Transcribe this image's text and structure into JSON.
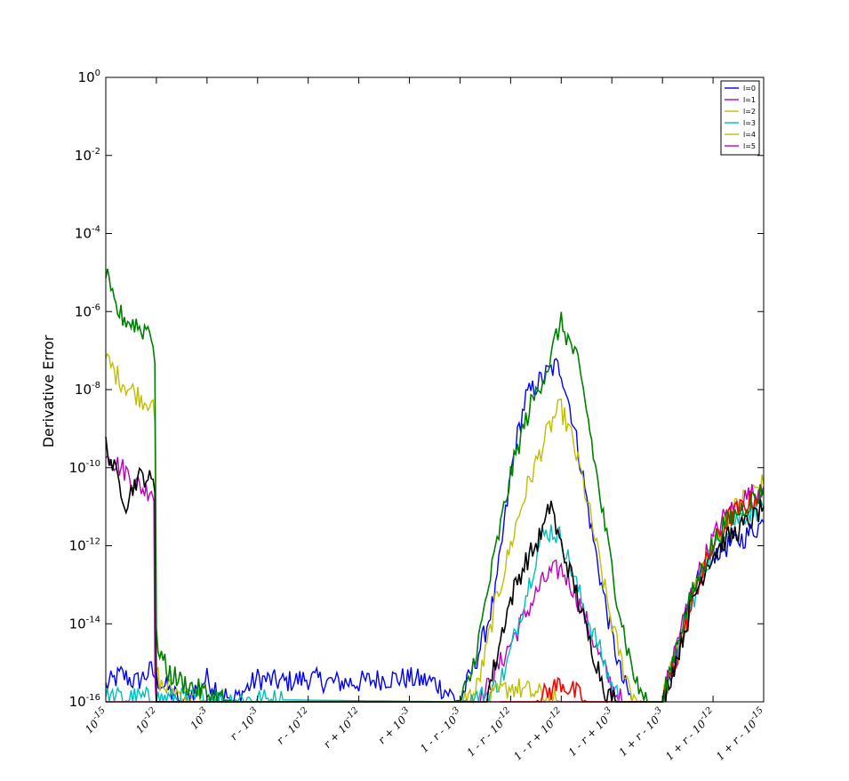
{
  "chart_data": {
    "type": "line",
    "title": "",
    "xlabel": "",
    "ylabel": "Derivative Error",
    "y_scale": "log",
    "ylim": [
      1e-16,
      1
    ],
    "y_ticks": [
      {
        "base": "10",
        "exp": "0"
      },
      {
        "base": "10",
        "exp": "-2"
      },
      {
        "base": "10",
        "exp": "-4"
      },
      {
        "base": "10",
        "exp": "-6"
      },
      {
        "base": "10",
        "exp": "-8"
      },
      {
        "base": "10",
        "exp": "-10"
      },
      {
        "base": "10",
        "exp": "-12"
      },
      {
        "base": "10",
        "exp": "-14"
      },
      {
        "base": "10",
        "exp": "-16"
      }
    ],
    "x_ticks": [
      "10^{-15}",
      "10^{-12}",
      "10^{-3}",
      "r - 10^{-3}",
      "r - 10^{-12}",
      "r + 10^{-12}",
      "r + 10^{-3}",
      "1 - r - 10^{-3}",
      "1 - r - 10^{-12}",
      "1 - r + 10^{-12}",
      "1 - r + 10^{-3}",
      "1 + r - 10^{-3}",
      "1 + r - 10^{-12}",
      "1 + r - 10^{-15}"
    ],
    "grid": false,
    "legend_position": "top-right",
    "legend": [
      "l=0",
      "l=1",
      "l=2",
      "l=3",
      "l=4",
      "l=5"
    ],
    "colors": {
      "blue": "#0000ff",
      "magenta": "#bf00bf",
      "olive": "#bfbf00",
      "cyan": "#00bfbf",
      "red": "#ff0000",
      "black": "#000000",
      "green": "#007f00"
    },
    "series": [
      {
        "name": "l=0",
        "color": "#0000ff",
        "log10_points": [
          [
            0,
            -15.6
          ],
          [
            0.3,
            -15.3
          ],
          [
            0.6,
            -15.5
          ],
          [
            0.9,
            -15.2
          ],
          [
            1,
            -15.4
          ],
          [
            1.5,
            -16
          ],
          [
            2,
            -15.4
          ],
          [
            2.5,
            -16
          ],
          [
            3,
            -15.4
          ],
          [
            3.5,
            -15.5
          ],
          [
            4,
            -15.4
          ],
          [
            4.5,
            -15.5
          ],
          [
            5,
            -15.5
          ],
          [
            5.5,
            -15.4
          ],
          [
            6,
            -15.4
          ],
          [
            6.5,
            -15.5
          ],
          [
            6.8,
            -15.8
          ],
          [
            7,
            -16
          ],
          [
            7.3,
            -15
          ],
          [
            7.5,
            -14.2
          ],
          [
            7.7,
            -13.2
          ],
          [
            7.8,
            -12.2
          ],
          [
            7.9,
            -11.2
          ],
          [
            8,
            -10.2
          ],
          [
            8.1,
            -9.4
          ],
          [
            8.2,
            -8.8
          ],
          [
            8.3,
            -8.2
          ],
          [
            8.5,
            -7.9
          ],
          [
            8.7,
            -7.6
          ],
          [
            8.9,
            -7.4
          ],
          [
            9,
            -7.5
          ],
          [
            9.2,
            -8.6
          ],
          [
            9.4,
            -10
          ],
          [
            9.6,
            -11.6
          ],
          [
            9.8,
            -13
          ],
          [
            10,
            -14.3
          ],
          [
            10.2,
            -15.4
          ],
          [
            10.4,
            -16
          ],
          [
            11,
            -16
          ],
          [
            11.2,
            -15.2
          ],
          [
            11.4,
            -14.2
          ],
          [
            11.6,
            -13.3
          ],
          [
            11.8,
            -12.6
          ],
          [
            12,
            -12.2
          ],
          [
            12.3,
            -12
          ],
          [
            12.6,
            -11.8
          ],
          [
            13,
            -11.4
          ]
        ]
      },
      {
        "name": "l=1",
        "color": "#bf00bf",
        "log10_points": [
          [
            0,
            -9.5
          ],
          [
            0.2,
            -9.9
          ],
          [
            0.4,
            -10.1
          ],
          [
            0.6,
            -10.4
          ],
          [
            0.8,
            -10.6
          ],
          [
            0.9,
            -10.5
          ],
          [
            0.95,
            -10.8
          ],
          [
            0.97,
            -15
          ],
          [
            1,
            -16
          ],
          [
            7,
            -16
          ],
          [
            7.4,
            -16
          ],
          [
            7.6,
            -15.5
          ],
          [
            7.8,
            -15
          ],
          [
            8,
            -14.5
          ],
          [
            8.2,
            -14
          ],
          [
            8.4,
            -13.5
          ],
          [
            8.6,
            -13
          ],
          [
            8.8,
            -12.7
          ],
          [
            9,
            -12.6
          ],
          [
            9.2,
            -13
          ],
          [
            9.4,
            -13.6
          ],
          [
            9.6,
            -14.3
          ],
          [
            9.8,
            -15
          ],
          [
            10,
            -15.6
          ],
          [
            10.2,
            -16
          ]
        ]
      },
      {
        "name": "l=2",
        "color": "#bfbf00",
        "log10_points": [
          [
            0,
            -7.2
          ],
          [
            0.2,
            -7.6
          ],
          [
            0.4,
            -7.9
          ],
          [
            0.6,
            -8.1
          ],
          [
            0.8,
            -8.3
          ],
          [
            0.9,
            -8.2
          ],
          [
            0.97,
            -8.9
          ],
          [
            1,
            -15.2
          ],
          [
            1.1,
            -15.6
          ],
          [
            1.5,
            -15.8
          ],
          [
            2,
            -16
          ],
          [
            7,
            -16
          ],
          [
            7.3,
            -15.8
          ],
          [
            7.5,
            -14.8
          ],
          [
            7.7,
            -13.5
          ],
          [
            7.9,
            -12.5
          ],
          [
            8.1,
            -11.5
          ],
          [
            8.3,
            -10.6
          ],
          [
            8.5,
            -9.9
          ],
          [
            8.7,
            -9.2
          ],
          [
            8.9,
            -8.6
          ],
          [
            9,
            -8.5
          ],
          [
            9.2,
            -9.2
          ],
          [
            9.4,
            -10.2
          ],
          [
            9.6,
            -11.4
          ],
          [
            9.8,
            -12.7
          ],
          [
            10,
            -14
          ],
          [
            10.2,
            -15
          ],
          [
            10.4,
            -15.8
          ],
          [
            10.6,
            -16
          ]
        ]
      },
      {
        "name": "l=3",
        "color": "#00bfbf",
        "log10_points": [
          [
            0,
            -15.9
          ],
          [
            7,
            -16
          ],
          [
            7.6,
            -15.8
          ],
          [
            7.9,
            -15.2
          ],
          [
            8.1,
            -14.2
          ],
          [
            8.4,
            -12.8
          ],
          [
            8.6,
            -11.8
          ],
          [
            8.8,
            -11.6
          ],
          [
            9,
            -11.8
          ],
          [
            9.2,
            -12.6
          ],
          [
            9.5,
            -13.8
          ],
          [
            9.8,
            -14.8
          ],
          [
            10,
            -15.6
          ],
          [
            10.2,
            -16
          ],
          [
            11,
            -16
          ],
          [
            11.3,
            -14.8
          ],
          [
            11.6,
            -13.4
          ],
          [
            11.9,
            -12.4
          ],
          [
            12.2,
            -11.6
          ],
          [
            12.6,
            -11.2
          ],
          [
            13,
            -11
          ]
        ]
      },
      {
        "name": "l=4",
        "color": "#bfbf00",
        "log10_points": [
          [
            0,
            -16
          ],
          [
            7.5,
            -16
          ],
          [
            8,
            -15.6
          ],
          [
            8.5,
            -15.8
          ],
          [
            9,
            -16
          ],
          [
            11,
            -16
          ],
          [
            11.3,
            -14.6
          ],
          [
            11.6,
            -13.2
          ],
          [
            11.9,
            -12.2
          ],
          [
            12.2,
            -11.4
          ],
          [
            12.6,
            -10.8
          ],
          [
            13,
            -10.4
          ]
        ]
      },
      {
        "name": "l=5",
        "color": "#bf00bf",
        "log10_points": [
          [
            0,
            -16
          ],
          [
            11,
            -16
          ],
          [
            11.3,
            -14.4
          ],
          [
            11.6,
            -13.1
          ],
          [
            11.9,
            -12.1
          ],
          [
            12.2,
            -11.3
          ],
          [
            12.6,
            -10.8
          ],
          [
            13,
            -10.5
          ]
        ]
      }
    ],
    "extra_curves": [
      {
        "color": "#ff0000",
        "log10_points": [
          [
            7.8,
            -16
          ],
          [
            8.5,
            -16
          ],
          [
            9,
            -15.5
          ],
          [
            9.5,
            -16
          ],
          [
            11,
            -16
          ],
          [
            11.4,
            -14.4
          ],
          [
            11.7,
            -13
          ],
          [
            12,
            -12
          ],
          [
            12.3,
            -11.3
          ],
          [
            12.7,
            -10.9
          ],
          [
            13,
            -10.6
          ]
        ]
      },
      {
        "color": "#000000",
        "log10_points": [
          [
            0,
            -9.4
          ],
          [
            0.1,
            -9.8
          ],
          [
            0.2,
            -10.2
          ],
          [
            0.3,
            -10.5
          ],
          [
            0.4,
            -10.9
          ],
          [
            0.5,
            -10.6
          ],
          [
            0.6,
            -10.3
          ],
          [
            0.8,
            -10.2
          ],
          [
            0.9,
            -10.4
          ],
          [
            0.97,
            -10.5
          ],
          [
            1,
            -16
          ],
          [
            7.5,
            -16
          ],
          [
            7.7,
            -15
          ],
          [
            7.9,
            -13.8
          ],
          [
            8.1,
            -13
          ],
          [
            8.3,
            -12.4
          ],
          [
            8.5,
            -12
          ],
          [
            8.7,
            -11.4
          ],
          [
            8.8,
            -10.8
          ],
          [
            8.9,
            -11.6
          ],
          [
            9.1,
            -12.4
          ],
          [
            9.3,
            -13.2
          ],
          [
            9.5,
            -14.2
          ],
          [
            9.7,
            -15
          ],
          [
            9.9,
            -15.8
          ],
          [
            10.1,
            -16
          ],
          [
            11,
            -16
          ],
          [
            11.3,
            -14.8
          ],
          [
            11.6,
            -13.4
          ],
          [
            11.9,
            -12.4
          ],
          [
            12.2,
            -11.9
          ],
          [
            12.5,
            -11.6
          ],
          [
            12.8,
            -11.3
          ],
          [
            13,
            -11
          ]
        ]
      },
      {
        "color": "#007f00",
        "log10_points": [
          [
            0,
            -5
          ],
          [
            0.1,
            -5.6
          ],
          [
            0.2,
            -5.9
          ],
          [
            0.3,
            -6.1
          ],
          [
            0.4,
            -6.2
          ],
          [
            0.5,
            -6.3
          ],
          [
            0.6,
            -6.3
          ],
          [
            0.7,
            -6.5
          ],
          [
            0.8,
            -6.4
          ],
          [
            0.9,
            -6.5
          ],
          [
            0.97,
            -7.2
          ],
          [
            1,
            -14.4
          ],
          [
            1.2,
            -15.2
          ],
          [
            1.5,
            -15.5
          ],
          [
            2,
            -15.8
          ],
          [
            2.5,
            -16
          ],
          [
            7,
            -16
          ],
          [
            7.2,
            -15.4
          ],
          [
            7.4,
            -14.2
          ],
          [
            7.6,
            -12.8
          ],
          [
            7.8,
            -11.5
          ],
          [
            8,
            -10.2
          ],
          [
            8.2,
            -9.2
          ],
          [
            8.4,
            -8.4
          ],
          [
            8.6,
            -7.8
          ],
          [
            8.8,
            -7.2
          ],
          [
            8.9,
            -6.6
          ],
          [
            9,
            -6.3
          ],
          [
            9.1,
            -6.6
          ],
          [
            9.3,
            -7.2
          ],
          [
            9.5,
            -8.5
          ],
          [
            9.7,
            -10.2
          ],
          [
            9.9,
            -11.8
          ],
          [
            10.1,
            -13.3
          ],
          [
            10.3,
            -14.6
          ],
          [
            10.5,
            -15.6
          ],
          [
            10.7,
            -16
          ],
          [
            11,
            -16
          ],
          [
            11.3,
            -14.4
          ],
          [
            11.6,
            -13.2
          ],
          [
            11.9,
            -12.2
          ],
          [
            12.2,
            -11.5
          ],
          [
            12.6,
            -11
          ],
          [
            13,
            -10.6
          ]
        ]
      }
    ]
  }
}
